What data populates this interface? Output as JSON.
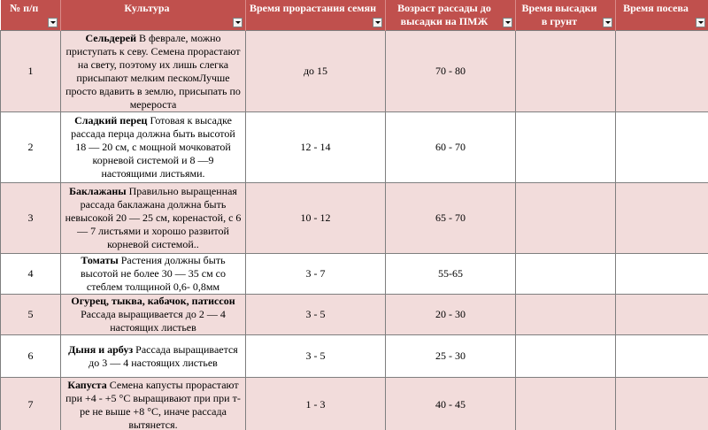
{
  "headers": [
    "№ п/п",
    "Культура",
    "Время прорастания семян",
    "Возраст рассады до высадки на ПМЖ",
    "Время высадки в грунт",
    "Время посева"
  ],
  "rows": [
    {
      "num": "1",
      "name": "Сельдерей",
      "desc": " В феврале, можно приступать к севу. Семена прорастают на свету, поэтому их лишь слегка присыпают мелким пескомЛучше просто вдавить в землю, присыпать по мерероста",
      "germ": "до 15",
      "age": "70 - 80",
      "plant": "",
      "sow": ""
    },
    {
      "num": "2",
      "name": "Сладкий перец",
      "desc": " Готовая к высадке рассада перца должна быть  высотой 18 — 20 см, с мощной мочковатой корневой системой и 8 —9 настоящими  листьями.",
      "germ": "12 - 14",
      "age": "60 - 70",
      "plant": "",
      "sow": ""
    },
    {
      "num": "3",
      "name": "Баклажаны",
      "desc": " Правильно выращенная рассада баклажана должна быть невысокой 20 — 25 см, коренастой, с 6 — 7 листьями и хорошо развитой корневой системой..",
      "germ": "10 - 12",
      "age": "65 - 70",
      "plant": "",
      "sow": ""
    },
    {
      "num": "4",
      "name": "Томаты",
      "desc": " Растения должны быть высотой не более 30 — 35 см со стеблем толщиной 0,6- 0,8мм",
      "germ": "3 - 7",
      "age": "55-65",
      "plant": "",
      "sow": ""
    },
    {
      "num": "5",
      "name": "Огурец, тыква, кабачок, патиссон",
      "desc": " Рассада  выращивается до 2 — 4 настоящих листьев",
      "germ": "3 - 5",
      "age": "20 - 30",
      "plant": "",
      "sow": ""
    },
    {
      "num": "6",
      "name": "Дыня и арбуз",
      "desc": "  Рассада выращивается до 3 — 4  настоящих листьев",
      "germ": "3 - 5",
      "age": "25 - 30",
      "plant": "",
      "sow": ""
    },
    {
      "num": "7",
      "name": "Капуста",
      "desc": " Семена капусты прорастают при +4 - +5 °С выращивают при при т-ре не выше +8 °С, иначе рассада вытянется.",
      "germ": "1 - 3",
      "age": "40 - 45",
      "plant": "",
      "sow": ""
    }
  ]
}
